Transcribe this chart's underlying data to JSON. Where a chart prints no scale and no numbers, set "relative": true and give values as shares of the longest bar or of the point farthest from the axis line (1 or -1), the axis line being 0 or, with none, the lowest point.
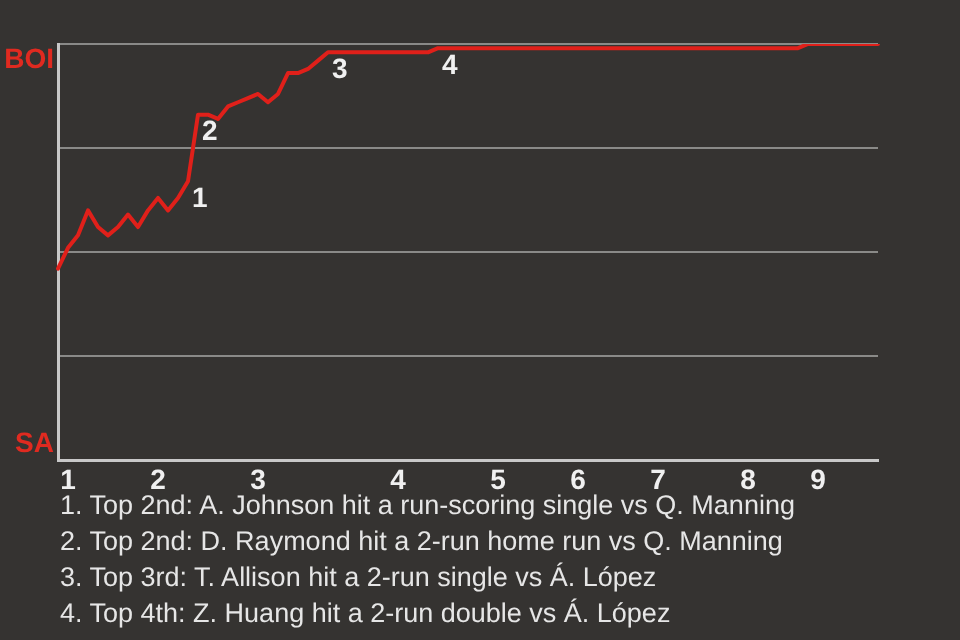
{
  "chart_data": {
    "type": "line",
    "relative": true,
    "categories": [
      null,
      "1",
      null,
      null,
      null,
      null,
      null,
      null,
      null,
      null,
      "2",
      null,
      null,
      null,
      null,
      null,
      null,
      null,
      null,
      null,
      "3",
      null,
      null,
      null,
      null,
      null,
      null,
      null,
      null,
      null,
      null,
      null,
      null,
      null,
      "4",
      null,
      null,
      null,
      null,
      null,
      null,
      null,
      null,
      null,
      "5",
      null,
      null,
      null,
      null,
      null,
      null,
      null,
      "6",
      null,
      null,
      null,
      null,
      null,
      null,
      null,
      "7",
      null,
      null,
      null,
      null,
      null,
      null,
      null,
      null,
      "8",
      null,
      null,
      null,
      null,
      null,
      null,
      "9",
      null,
      null,
      null,
      null,
      null,
      null
    ],
    "series": [
      {
        "color": "#e0201a",
        "values": [
          0.46,
          0.51,
          0.54,
          0.6,
          0.56,
          0.54,
          0.56,
          0.59,
          0.56,
          0.6,
          0.63,
          0.6,
          0.63,
          0.67,
          0.83,
          0.83,
          0.82,
          0.85,
          0.86,
          0.87,
          0.88,
          0.86,
          0.88,
          0.93,
          0.93,
          0.94,
          0.96,
          0.98,
          0.98,
          0.98,
          0.98,
          0.98,
          0.98,
          0.98,
          0.98,
          0.98,
          0.98,
          0.98,
          0.99,
          0.99,
          0.99,
          0.99,
          0.99,
          0.99,
          0.99,
          0.99,
          0.99,
          0.99,
          0.99,
          0.99,
          0.99,
          0.99,
          0.99,
          0.99,
          0.99,
          0.99,
          0.99,
          0.99,
          0.99,
          0.99,
          0.99,
          0.99,
          0.99,
          0.99,
          0.99,
          0.99,
          0.99,
          0.99,
          0.99,
          0.99,
          0.99,
          0.99,
          0.99,
          0.99,
          0.99,
          1,
          1,
          1,
          1,
          1,
          1,
          1,
          1
        ]
      }
    ],
    "grid": "y",
    "legend": false,
    "marker": "none",
    "line_style": "solid",
    "annotations": [
      "BOI",
      "SA",
      {
        "text": "1",
        "y": 0.67
      },
      {
        "text": "2",
        "y": 0.83
      },
      {
        "text": "3",
        "y": 0.98
      },
      {
        "text": "4",
        "y": 0.99
      },
      "1. Top 2nd: A. Johnson hit a run-scoring single vs Q. Manning",
      "2. Top 2nd: D. Raymond hit a 2-run home run vs Q. Manning",
      "3. Top 3rd: T. Allison hit a 2-run single vs Á. López",
      "4. Top 4th: Z. Huang hit a 2-run double vs Á. López"
    ]
  }
}
